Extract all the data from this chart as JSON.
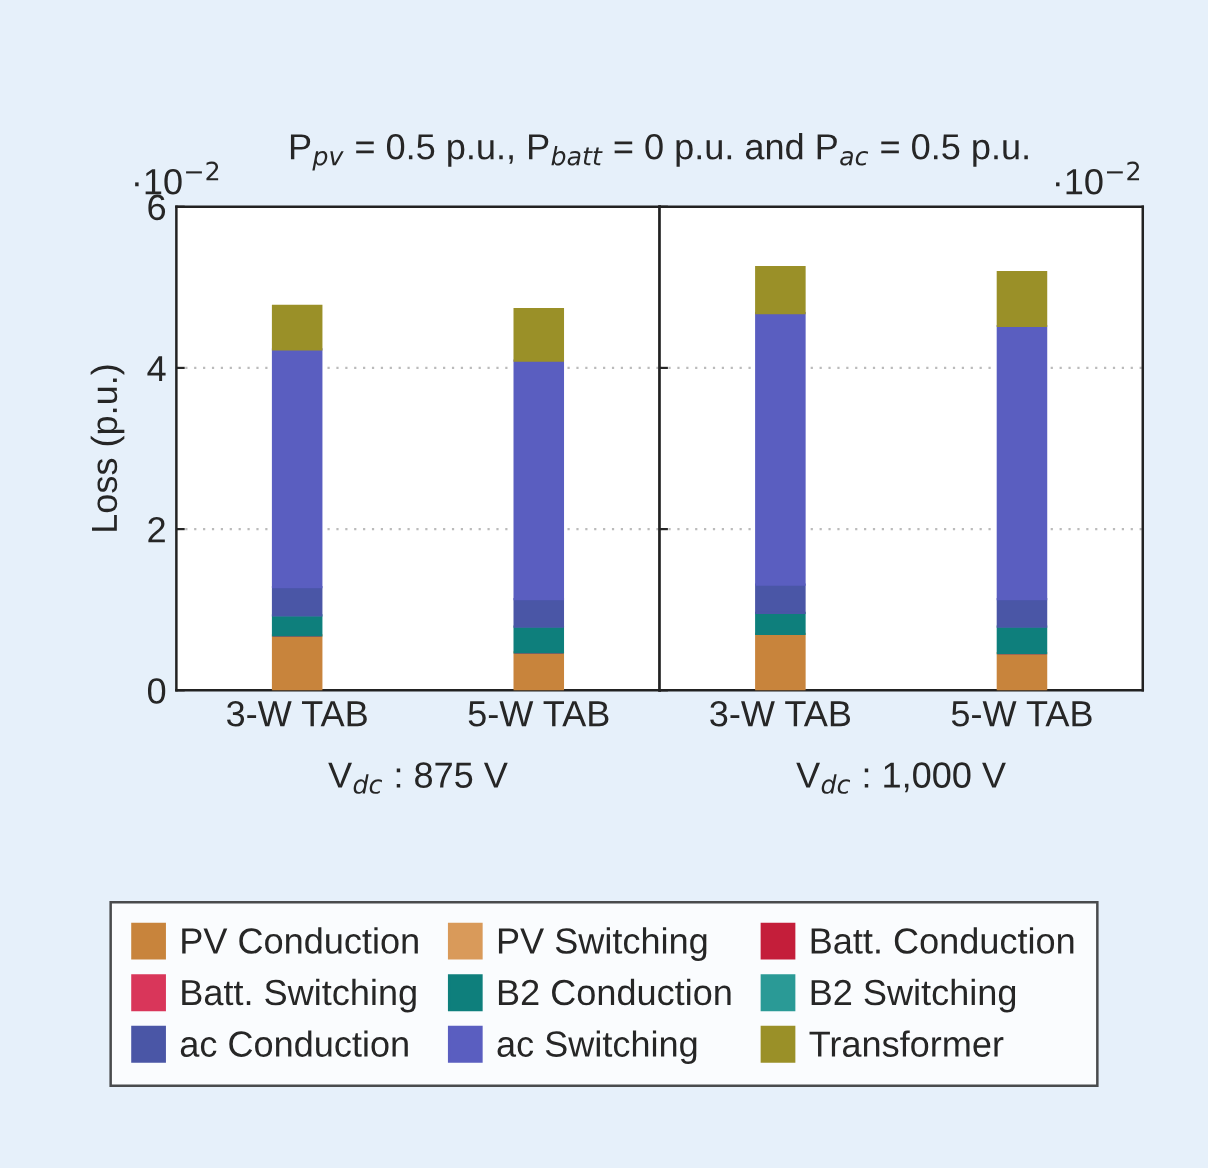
{
  "chart_data": [
    {
      "type": "bar",
      "title": "P$_{pv}$ = 0.5 p.u., P$_{batt}$ = 0 p.u. and P$_{ac}$ = 0.5 p.u.",
      "xlabel": "V$_{dc}$ : 875 V",
      "ylabel": "Loss (p.u.)",
      "annotations": [
        "·10$^{−2}$"
      ],
      "categories": [
        "3-W TAB",
        "5-W TAB"
      ],
      "stacked": true,
      "ylim": [
        0,
        6
      ],
      "yticks": [
        0,
        2,
        4,
        6
      ],
      "grid": "y",
      "legend": "bottom",
      "series": [
        {
          "name": "PV Conduction",
          "color": "#c8843c",
          "values": [
            0.68,
            0.47
          ]
        },
        {
          "name": "PV Switching",
          "color": "#d99a5a",
          "values": [
            0,
            0
          ]
        },
        {
          "name": "Batt. Conduction",
          "color": "#c41e3a",
          "values": [
            0,
            0
          ]
        },
        {
          "name": "Batt. Switching",
          "color": "#d9365a",
          "values": [
            0,
            0
          ]
        },
        {
          "name": "B2 Conduction",
          "color": "#0e7f7c",
          "values": [
            0.25,
            0.32
          ]
        },
        {
          "name": "B2 Switching",
          "color": "#2a9a96",
          "values": [
            0,
            0
          ]
        },
        {
          "name": "ac Conduction",
          "color": "#4a56a6",
          "values": [
            0.35,
            0.34
          ]
        },
        {
          "name": "ac Switching",
          "color": "#5a5ec0",
          "values": [
            2.95,
            2.96
          ]
        },
        {
          "name": "Transformer",
          "color": "#9a9028",
          "values": [
            0.54,
            0.64
          ]
        }
      ]
    },
    {
      "type": "bar",
      "xlabel": "V$_{dc}$ : 1,000 V",
      "annotations": [
        "·10$^{−2}$"
      ],
      "categories": [
        "3-W TAB",
        "5-W TAB"
      ],
      "stacked": true,
      "ylim": [
        0,
        6
      ],
      "yticks": [
        0,
        2,
        4,
        6
      ],
      "grid": "y",
      "tick_labels": "x",
      "series": [
        {
          "color": "#c8843c",
          "values": [
            0.7,
            0.46
          ]
        },
        {
          "color": "#d99a5a",
          "values": [
            0,
            0
          ]
        },
        {
          "color": "#c41e3a",
          "values": [
            0,
            0
          ]
        },
        {
          "color": "#d9365a",
          "values": [
            0,
            0
          ]
        },
        {
          "color": "#0e7f7c",
          "values": [
            0.26,
            0.33
          ]
        },
        {
          "color": "#2a9a96",
          "values": [
            0,
            0
          ]
        },
        {
          "color": "#4a56a6",
          "values": [
            0.35,
            0.34
          ]
        },
        {
          "color": "#5a5ec0",
          "values": [
            3.37,
            3.39
          ]
        },
        {
          "color": "#9a9028",
          "values": [
            0.57,
            0.67
          ]
        }
      ]
    }
  ]
}
